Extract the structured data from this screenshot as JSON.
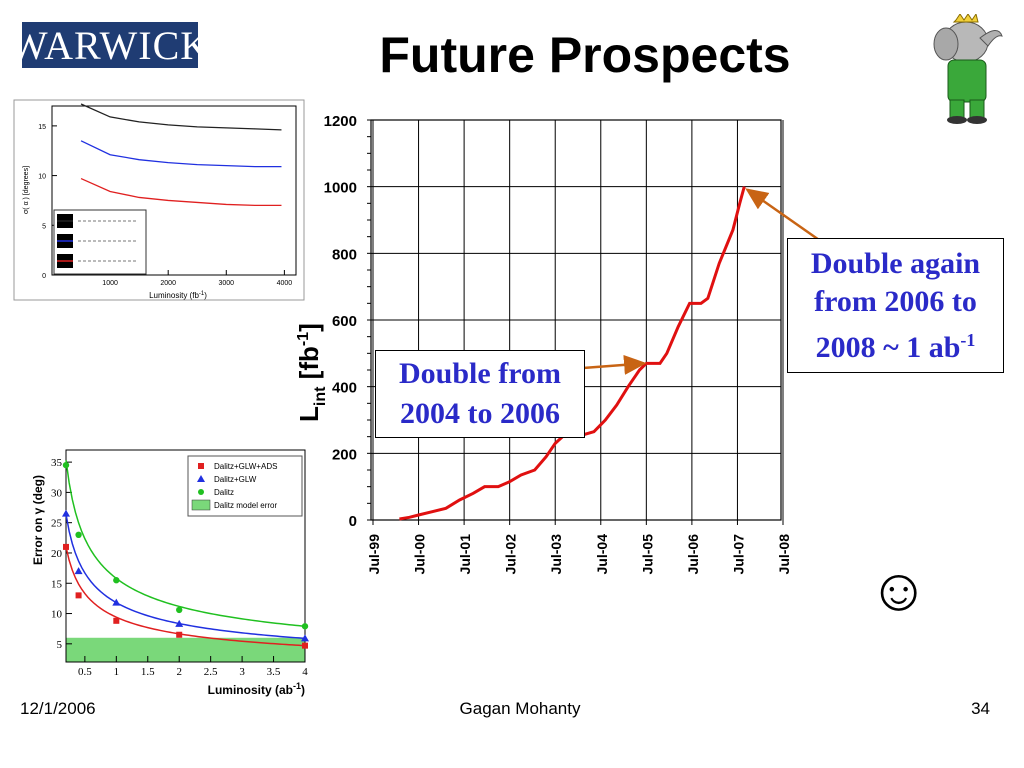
{
  "slide": {
    "logo_text": "WARWICK",
    "title": "Future Prospects",
    "footer_date": "12/1/2006",
    "footer_author": "Gagan Mohanty",
    "footer_page": "34",
    "smiley": "☺"
  },
  "annotations": {
    "double_again_lines": [
      "Double again",
      "from 2006 to",
      "2008 ~ 1 ab"
    ],
    "double_again_sup": "-1",
    "double_from_lines": [
      "Double from",
      "2004 to 2006"
    ]
  },
  "colors": {
    "logo_bg": "#1f3c73",
    "main_line": "#e01010",
    "arrow": "#c86414",
    "annotation_text": "#2a2ac8",
    "model_error_fill": "#7ad87a"
  },
  "chart_data": [
    {
      "id": "integrated-luminosity",
      "type": "line",
      "xlabel": "",
      "ylabel": "L",
      "ylabel_sub": "int",
      "ylabel_unit": "[fb",
      "ylabel_unit_sup": "-1",
      "ylabel_unit_close": "]",
      "ylim": [
        0,
        1200
      ],
      "yticks": [
        0,
        200,
        400,
        600,
        800,
        1000,
        1200
      ],
      "xticks": [
        "Jul-99",
        "Jul-00",
        "Jul-01",
        "Jul-02",
        "Jul-03",
        "Jul-04",
        "Jul-05",
        "Jul-06",
        "Jul-07",
        "Jul-08"
      ],
      "grid": true,
      "series": [
        {
          "x": [
            0.58,
            0.8,
            1.0,
            1.3,
            1.6,
            1.9,
            2.2,
            2.45,
            2.75,
            3.0,
            3.25,
            3.55,
            3.8,
            4.0,
            4.2,
            4.6,
            4.85,
            5.1,
            5.35,
            5.6,
            5.85,
            6.0,
            6.3,
            6.45,
            6.7,
            6.95,
            7.2,
            7.35,
            7.6,
            7.9,
            8.05,
            8.15
          ],
          "y": [
            3,
            8,
            15,
            25,
            35,
            60,
            80,
            100,
            100,
            115,
            135,
            150,
            190,
            230,
            255,
            255,
            265,
            300,
            345,
            400,
            450,
            470,
            470,
            500,
            580,
            650,
            650,
            665,
            770,
            870,
            950,
            1000
          ]
        }
      ]
    },
    {
      "id": "sigma-alpha",
      "type": "line",
      "xlabel": "Luminosity (fb",
      "xlabel_sup": "-1",
      "xlabel_close": ")",
      "ylabel": "σ( α ) [degrees]",
      "xlim": [
        0,
        4200
      ],
      "ylim": [
        0,
        17
      ],
      "xticks": [
        1000,
        2000,
        3000,
        4000
      ],
      "yticks": [
        0,
        5,
        10,
        15
      ],
      "legend": "bottom-left",
      "legend_entries": [
        "",
        "",
        ""
      ],
      "series": [
        {
          "color": "#222222",
          "x": [
            500,
            1000,
            1500,
            2000,
            2500,
            3000,
            3500,
            3950
          ],
          "y": [
            17.2,
            15.9,
            15.4,
            15.1,
            14.9,
            14.8,
            14.7,
            14.6
          ]
        },
        {
          "color": "#2030e0",
          "x": [
            500,
            1000,
            1500,
            2000,
            2500,
            3000,
            3500,
            3950
          ],
          "y": [
            13.5,
            12.1,
            11.6,
            11.3,
            11.1,
            11.0,
            10.9,
            10.9
          ]
        },
        {
          "color": "#e02020",
          "x": [
            500,
            1000,
            1500,
            2000,
            2500,
            3000,
            3500,
            3950
          ],
          "y": [
            9.7,
            8.4,
            7.8,
            7.5,
            7.3,
            7.1,
            7.0,
            7.0
          ]
        }
      ]
    },
    {
      "id": "gamma-error",
      "type": "scatter",
      "xlabel": "Luminosity (ab",
      "xlabel_sup": "-1",
      "xlabel_close": ")",
      "ylabel": "Error on γ (deg)",
      "xlim": [
        0.2,
        4
      ],
      "ylim": [
        2,
        37
      ],
      "xticks": [
        0.5,
        1,
        1.5,
        2,
        2.5,
        3,
        3.5,
        4
      ],
      "xtick_labels": [
        "0.5",
        "1",
        "1.5",
        "2",
        "2.5",
        "3",
        "3.5",
        "4"
      ],
      "yticks": [
        5,
        10,
        15,
        20,
        25,
        30,
        35
      ],
      "legend": "top-right",
      "model_error_band": [
        2,
        6
      ],
      "series": [
        {
          "name": "Dalitz+GLW+ADS",
          "color": "#e02020",
          "marker": "square",
          "x": [
            0.2,
            0.4,
            1,
            2,
            4
          ],
          "y": [
            21,
            13,
            8.8,
            6.5,
            4.7
          ]
        },
        {
          "name": "Dalitz+GLW",
          "color": "#2030e0",
          "marker": "triangle",
          "x": [
            0.2,
            0.4,
            1,
            2,
            4
          ],
          "y": [
            26.5,
            17,
            11.8,
            8.3,
            5.9
          ]
        },
        {
          "name": "Dalitz",
          "color": "#20c020",
          "marker": "circle",
          "x": [
            0.2,
            0.4,
            1,
            2,
            4
          ],
          "y": [
            34.5,
            23,
            15.5,
            10.6,
            7.9
          ]
        },
        {
          "name": "Dalitz model error",
          "color": "#7ad87a",
          "marker": "box"
        }
      ]
    }
  ]
}
